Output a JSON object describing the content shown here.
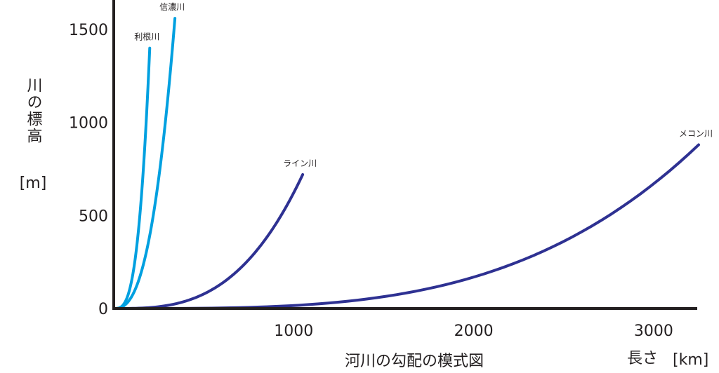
{
  "chart_data": {
    "type": "line",
    "title": "河川の勾配の模式図",
    "xlabel": "長さ",
    "xunit": "[km]",
    "ylabel": "川の標高",
    "yunit": "[m]",
    "xlim": [
      0,
      3200
    ],
    "ylim": [
      0,
      1600
    ],
    "xticks": [
      1000,
      2000,
      3000
    ],
    "yticks": [
      0,
      500,
      1000,
      1500
    ],
    "grid": false,
    "series": [
      {
        "name": "利根川",
        "color": "#00a0e0",
        "length_km": 200,
        "elevation_m": 1400,
        "shape": 3.2
      },
      {
        "name": "信濃川",
        "color": "#00a0e0",
        "length_km": 340,
        "elevation_m": 1560,
        "shape": 2.6
      },
      {
        "name": "ライン川",
        "color": "#2e3192",
        "length_km": 1050,
        "elevation_m": 720,
        "shape": 3.0
      },
      {
        "name": "メコン川",
        "color": "#2e3192",
        "length_km": 3250,
        "elevation_m": 880,
        "shape": 3.4
      }
    ]
  }
}
